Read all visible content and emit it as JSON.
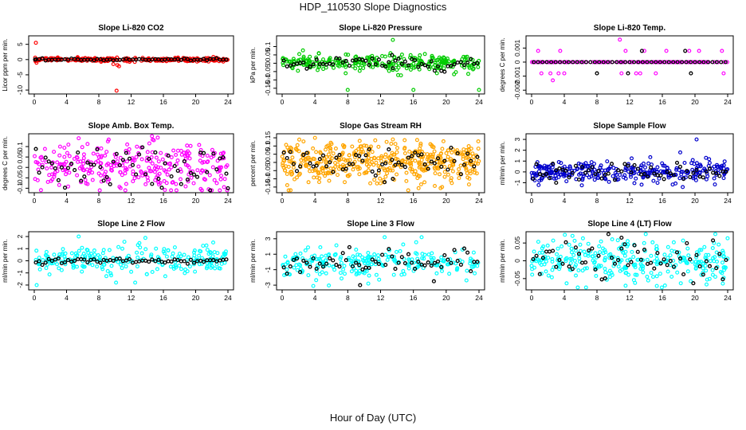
{
  "page": {
    "title": "HDP_110530  Slope Diagnostics",
    "xlabel": "Hour of Day (UTC)"
  },
  "chart_data": [
    {
      "type": "scatter",
      "title": "Slope Li-820 CO2",
      "ylabel": "Licor ppm per min.",
      "xlim": [
        0,
        24
      ],
      "ylim": [
        -10.5,
        7
      ],
      "xticks": [
        0,
        4,
        8,
        12,
        16,
        20,
        24
      ],
      "yticks": [
        -10,
        -5,
        0,
        5
      ],
      "color": "#ff0000",
      "spread": 0.3,
      "black_spread": 0.15,
      "outliers": [
        [
          0.2,
          5.5
        ],
        [
          10.2,
          -10.2
        ],
        [
          10.5,
          -2.2
        ],
        [
          10.3,
          -1.8
        ],
        [
          9.8,
          -1.5
        ]
      ],
      "black_outliers": [
        [
          0.1,
          0.0
        ]
      ],
      "n": 260,
      "nb": 60
    },
    {
      "type": "scatter",
      "title": "Slope Li-820 Pressure",
      "ylabel": "kPa per min.",
      "xlim": [
        0,
        24
      ],
      "ylim": [
        -0.17,
        0.15
      ],
      "xticks": [
        0,
        4,
        8,
        12,
        16,
        20,
        24
      ],
      "yticks": [
        -0.15,
        -0.1,
        -0.05,
        0.0,
        0.05,
        0.1
      ],
      "color": "#00cc00",
      "spread": 0.025,
      "black_spread": 0.02,
      "outliers": [
        [
          13.5,
          0.14
        ],
        [
          8,
          -0.16
        ],
        [
          16,
          -0.16
        ],
        [
          24,
          -0.16
        ],
        [
          13.2,
          0.06
        ],
        [
          13.5,
          -0.04
        ]
      ],
      "black_outliers": [
        [
          13.5,
          -0.03
        ]
      ],
      "n": 260,
      "nb": 60
    },
    {
      "type": "scatter",
      "title": "Slope Li-820 Temp.",
      "ylabel": "degrees C per min.",
      "xlim": [
        0,
        24
      ],
      "ylim": [
        -0.0021,
        0.0017
      ],
      "xticks": [
        0,
        4,
        8,
        12,
        16,
        20,
        24
      ],
      "yticks": [
        -0.002,
        -0.001,
        0.0,
        0.001
      ],
      "color": "#ff00ff",
      "spread": 0.0,
      "black_spread": 0.0,
      "outliers": [
        [
          0.8,
          0.0008
        ],
        [
          3.5,
          0.0008
        ],
        [
          10.8,
          0.0016
        ],
        [
          11.5,
          0.0008
        ],
        [
          13.8,
          0.0008
        ],
        [
          16.5,
          0.0008
        ],
        [
          19.3,
          0.0008
        ],
        [
          20.5,
          0.0008
        ],
        [
          23.3,
          0.0008
        ],
        [
          1.2,
          -0.0008
        ],
        [
          2.3,
          -0.0008
        ],
        [
          3.3,
          -0.0008
        ],
        [
          4.0,
          -0.0008
        ],
        [
          11.0,
          -0.0008
        ],
        [
          12.8,
          -0.0008
        ],
        [
          13.3,
          -0.0008
        ],
        [
          15.2,
          -0.0008
        ],
        [
          23.5,
          -0.0008
        ],
        [
          2.6,
          -0.0013
        ]
      ],
      "black_outliers": [
        [
          8.0,
          -0.0008
        ],
        [
          11.8,
          -0.0008
        ],
        [
          13.5,
          0.0008
        ],
        [
          18.8,
          0.0008
        ],
        [
          19.5,
          -0.0008
        ]
      ],
      "n": 140,
      "nb": 45
    },
    {
      "type": "scatter",
      "title": "Slope Amb. Box Temp.",
      "ylabel": "degrees C per min.",
      "xlim": [
        0,
        24
      ],
      "ylim": [
        -0.11,
        0.15
      ],
      "xticks": [
        0,
        4,
        8,
        12,
        16,
        20,
        24
      ],
      "yticks": [
        -0.1,
        -0.05,
        0.0,
        0.05,
        0.1
      ],
      "color": "#ff00ff",
      "spread": 0.06,
      "black_spread": 0.05,
      "outliers": [
        [
          5.5,
          0.14
        ],
        [
          3.2,
          0.1
        ]
      ],
      "black_outliers": [
        [
          24,
          -0.1
        ]
      ],
      "n": 300,
      "nb": 60
    },
    {
      "type": "scatter",
      "title": "Slope Gas Stream RH",
      "ylabel": "percent per min.",
      "xlim": [
        0,
        24
      ],
      "ylim": [
        -0.17,
        0.16
      ],
      "xticks": [
        0,
        4,
        8,
        12,
        16,
        20,
        24
      ],
      "yticks": [
        -0.15,
        -0.1,
        -0.05,
        0.0,
        0.05,
        0.1,
        0.15
      ],
      "color": "#ffa500",
      "spread": 0.06,
      "black_spread": 0.04,
      "outliers": [
        [
          4.0,
          0.15
        ],
        [
          19.5,
          -0.15
        ],
        [
          13.5,
          0.14
        ]
      ],
      "black_outliers": [
        [
          12.5,
          -0.12
        ],
        [
          13.5,
          -0.1
        ]
      ],
      "n": 450,
      "nb": 60
    },
    {
      "type": "scatter",
      "title": "Slope Sample Flow",
      "ylabel": "ml/min per min.",
      "xlim": [
        0,
        24
      ],
      "ylim": [
        -1.7,
        3.3
      ],
      "xticks": [
        0,
        4,
        8,
        12,
        16,
        20,
        24
      ],
      "yticks": [
        -1,
        0,
        1,
        2,
        3
      ],
      "color": "#0000cc",
      "spread": 0.5,
      "black_spread": 0.4,
      "outliers": [
        [
          20.2,
          3.0
        ],
        [
          18.2,
          1.8
        ],
        [
          18.5,
          -1.4
        ]
      ],
      "black_outliers": [
        [
          3.0,
          -1.0
        ]
      ],
      "n": 300,
      "nb": 60
    },
    {
      "type": "scatter",
      "title": "Slope Line 2 Flow",
      "ylabel": "ml/min per min.",
      "xlim": [
        0,
        24
      ],
      "ylim": [
        -2.2,
        2.2
      ],
      "xticks": [
        0,
        4,
        8,
        12,
        16,
        20,
        24
      ],
      "yticks": [
        -2,
        -1,
        0,
        1,
        2
      ],
      "color": "#00ffff",
      "spread": 0.6,
      "black_spread": 0.1,
      "outliers": [
        [
          0.3,
          -2.0
        ],
        [
          5.5,
          2.0
        ],
        [
          12.5,
          -1.8
        ]
      ],
      "black_outliers": [],
      "n": 240,
      "nb": 60
    },
    {
      "type": "scatter",
      "title": "Slope Line 3 Flow",
      "ylabel": "ml/min per min.",
      "xlim": [
        0,
        24
      ],
      "ylim": [
        -3.3,
        3.6
      ],
      "xticks": [
        0,
        4,
        8,
        12,
        16,
        20,
        24
      ],
      "yticks": [
        -3,
        -1,
        1,
        3
      ],
      "color": "#00ffff",
      "spread": 0.9,
      "black_spread": 0.7,
      "outliers": [
        [
          3.8,
          -3.1
        ],
        [
          12.5,
          3.2
        ],
        [
          17,
          3.2
        ],
        [
          10.5,
          -2.8
        ]
      ],
      "black_outliers": [
        [
          9.5,
          -3.0
        ],
        [
          18.5,
          -2.5
        ]
      ],
      "n": 240,
      "nb": 60
    },
    {
      "type": "scatter",
      "title": "Slope Line 4 (LT) Flow",
      "ylabel": "ml/min per min.",
      "xlim": [
        0,
        24
      ],
      "ylim": [
        -0.075,
        0.075
      ],
      "xticks": [
        0,
        4,
        8,
        12,
        16,
        20,
        24
      ],
      "yticks": [
        -0.05,
        0.0,
        0.05
      ],
      "color": "#00ffff",
      "spread": 0.03,
      "black_spread": 0.025,
      "outliers": [
        [
          5.0,
          0.07
        ],
        [
          11.5,
          -0.07
        ]
      ],
      "black_outliers": [
        [
          11.0,
          0.065
        ]
      ],
      "n": 300,
      "nb": 60
    }
  ]
}
